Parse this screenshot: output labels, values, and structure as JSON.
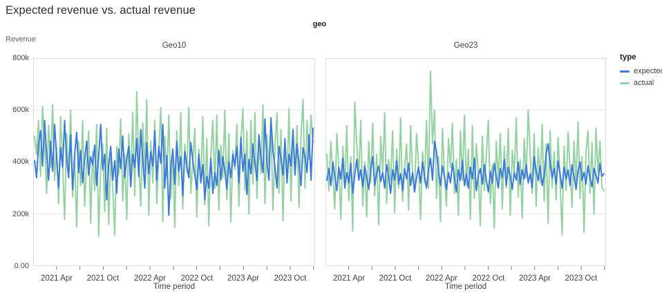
{
  "page": {
    "title": "Expected revenue vs. actual revenue"
  },
  "facet_header": "geo",
  "axes": {
    "y_title": "Revenue",
    "x_title": "Time period",
    "y_tick_labels": [
      "800k",
      "600k",
      "400k",
      "200k",
      "0.00"
    ],
    "x_tick_labels": [
      "2021 Apr",
      "2021 Oct",
      "2022 Apr",
      "2022 Oct",
      "2023 Apr",
      "2023 Oct"
    ]
  },
  "legend": {
    "title": "type",
    "items": [
      {
        "label": "expected",
        "color": "#3b7ad9"
      },
      {
        "label": "actual",
        "color": "#95d1a3"
      }
    ]
  },
  "style": {
    "grid_color": "#e8e8ea",
    "border_color": "#dcdcde",
    "tick_color": "#757575"
  },
  "chart_data": [
    {
      "type": "line",
      "facet": "Geo10",
      "x_unit": "week",
      "x_range": [
        "2021 Jan",
        "2023 Dec"
      ],
      "ylim": [
        0,
        800000
      ],
      "y_unit": "revenue (k = thousands)",
      "series": [
        {
          "name": "expected",
          "color": "#3b7ad9",
          "values_k": [
            405,
            340,
            470,
            520,
            385,
            560,
            430,
            330,
            480,
            365,
            545,
            420,
            300,
            455,
            380,
            560,
            410,
            340,
            505,
            295,
            430,
            515,
            360,
            445,
            320,
            410,
            480,
            350,
            420,
            390,
            465,
            310,
            420,
            545,
            370,
            430,
            255,
            390,
            460,
            330,
            405,
            280,
            450,
            375,
            500,
            340,
            415,
            460,
            305,
            430,
            380,
            490,
            345,
            525,
            410,
            300,
            475,
            355,
            440,
            385,
            520,
            330,
            460,
            395,
            545,
            300,
            425,
            195,
            380,
            450,
            315,
            480,
            365,
            420,
            270,
            440,
            390,
            340,
            475,
            405,
            350,
            295,
            430,
            320,
            390,
            255,
            345,
            300,
            415,
            280,
            360,
            310,
            445,
            330,
            420,
            365,
            295,
            400,
            340,
            430,
            385,
            460,
            320,
            495,
            365,
            430,
            275,
            410,
            355,
            470,
            395,
            330,
            505,
            420,
            360,
            565,
            400,
            330,
            570,
            445,
            380,
            300,
            460,
            415,
            350,
            490,
            320,
            430,
            385,
            525,
            350,
            470,
            395,
            310,
            455,
            420,
            360,
            505,
            330,
            530
          ]
        },
        {
          "name": "actual",
          "color": "#95d1a3",
          "values_k": [
            500,
            430,
            560,
            345,
            615,
            470,
            280,
            540,
            380,
            620,
            330,
            455,
            240,
            575,
            395,
            180,
            510,
            345,
            600,
            265,
            420,
            150,
            480,
            310,
            560,
            230,
            400,
            520,
            165,
            440,
            290,
            545,
            115,
            380,
            470,
            210,
            530,
            160,
            420,
            300,
            120,
            460,
            350,
            565,
            250,
            430,
            180,
            510,
            330,
            590,
            270,
            670,
            410,
            230,
            550,
            360,
            640,
            195,
            480,
            320,
            560,
            240,
            445,
            610,
            170,
            500,
            345,
            580,
            260,
            430,
            150,
            520,
            310,
            590,
            220,
            470,
            360,
            610,
            280,
            400,
            530,
            190,
            450,
            320,
            575,
            235,
            490,
            155,
            420,
            560,
            300,
            580,
            215,
            465,
            340,
            600,
            255,
            510,
            170,
            445,
            370,
            545,
            230,
            480,
            605,
            290,
            520,
            200,
            560,
            315,
            590,
            260,
            475,
            355,
            620,
            240,
            505,
            385,
            550,
            215,
            460,
            590,
            280,
            525,
            175,
            480,
            330,
            605,
            250,
            515,
            360,
            540,
            225,
            495,
            640,
            300,
            560,
            410,
            580,
            475
          ]
        }
      ]
    },
    {
      "type": "line",
      "facet": "Geo23",
      "x_unit": "week",
      "x_range": [
        "2021 Jan",
        "2023 Dec"
      ],
      "ylim": [
        0,
        800000
      ],
      "y_unit": "revenue (k = thousands)",
      "series": [
        {
          "name": "expected",
          "color": "#3b7ad9",
          "values_k": [
            330,
            375,
            310,
            400,
            345,
            290,
            380,
            335,
            415,
            300,
            360,
            320,
            395,
            280,
            350,
            410,
            330,
            370,
            305,
            385,
            340,
            295,
            375,
            420,
            310,
            355,
            385,
            325,
            360,
            300,
            390,
            345,
            280,
            370,
            330,
            405,
            315,
            355,
            290,
            375,
            335,
            395,
            310,
            360,
            285,
            340,
            380,
            320,
            400,
            345,
            300,
            370,
            415,
            330,
            480,
            440,
            365,
            310,
            385,
            345,
            295,
            360,
            320,
            395,
            340,
            285,
            370,
            330,
            405,
            310,
            355,
            300,
            380,
            335,
            415,
            290,
            350,
            375,
            315,
            390,
            330,
            285,
            365,
            320,
            395,
            345,
            300,
            375,
            340,
            410,
            310,
            380,
            345,
            295,
            360,
            330,
            400,
            315,
            370,
            335,
            390,
            320,
            355,
            300,
            420,
            365,
            330,
            385,
            310,
            350,
            430,
            470,
            395,
            340,
            375,
            315,
            405,
            355,
            300,
            380,
            335,
            370,
            310,
            390,
            345,
            295,
            365,
            400,
            330,
            360,
            315,
            385,
            340,
            305,
            375,
            350,
            320,
            395,
            345,
            355
          ]
        },
        {
          "name": "actual",
          "color": "#95d1a3",
          "values_k": [
            430,
            290,
            480,
            350,
            220,
            510,
            380,
            180,
            460,
            310,
            540,
            250,
            420,
            135,
            630,
            470,
            340,
            560,
            230,
            400,
            190,
            480,
            320,
            550,
            270,
            430,
            160,
            500,
            360,
            590,
            240,
            410,
            330,
            520,
            205,
            450,
            300,
            570,
            250,
            380,
            470,
            215,
            540,
            350,
            290,
            510,
            390,
            180,
            440,
            320,
            560,
            300,
            750,
            470,
            600,
            260,
            420,
            170,
            530,
            345,
            230,
            490,
            380,
            550,
            280,
            410,
            195,
            520,
            330,
            580,
            310,
            450,
            180,
            540,
            260,
            470,
            350,
            155,
            500,
            290,
            430,
            560,
            240,
            390,
            145,
            480,
            330,
            510,
            220,
            460,
            300,
            530,
            195,
            445,
            350,
            570,
            265,
            410,
            185,
            490,
            340,
            600,
            430,
            280,
            510,
            230,
            455,
            320,
            545,
            250,
            470,
            165,
            520,
            300,
            440,
            255,
            495,
            330,
            120,
            460,
            290,
            515,
            370,
            225,
            480,
            310,
            555,
            260,
            420,
            130,
            440,
            520,
            280,
            475,
            200,
            530,
            360,
            480,
            300,
            290
          ]
        }
      ]
    }
  ]
}
